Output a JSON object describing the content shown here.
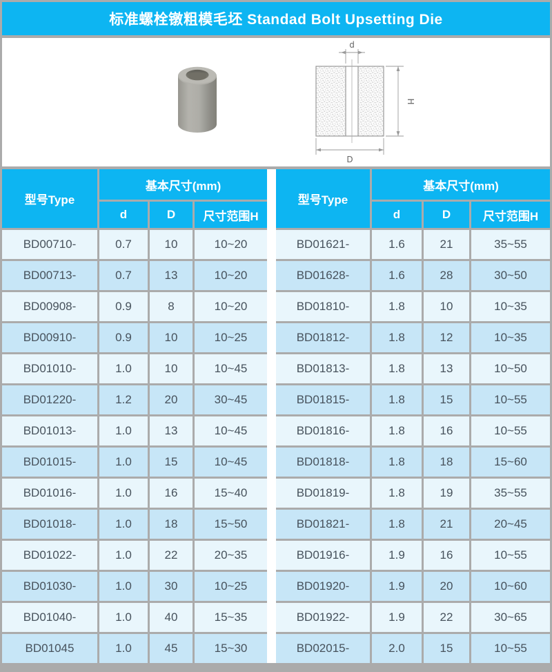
{
  "title": "标准螺栓镦粗模毛坯 Standad Bolt Upsetting Die",
  "figure": {
    "photo": "3d-render-of-cylindrical-upsetting-die",
    "diagram_labels": {
      "inner_dia": "d",
      "outer_dia": "D",
      "height": "H"
    }
  },
  "table_header": {
    "type_col": "型号Type",
    "group": "基本尺寸(mm)",
    "sub": [
      "d",
      "D",
      "尺寸范围H"
    ]
  },
  "tables": [
    {
      "rows": [
        [
          "BD00710-",
          "0.7",
          "10",
          "10~20"
        ],
        [
          "BD00713-",
          "0.7",
          "13",
          "10~20"
        ],
        [
          "BD00908-",
          "0.9",
          "8",
          "10~20"
        ],
        [
          "BD00910-",
          "0.9",
          "10",
          "10~25"
        ],
        [
          "BD01010-",
          "1.0",
          "10",
          "10~45"
        ],
        [
          "BD01220-",
          "1.2",
          "20",
          "30~45"
        ],
        [
          "BD01013-",
          "1.0",
          "13",
          "10~45"
        ],
        [
          "BD01015-",
          "1.0",
          "15",
          "10~45"
        ],
        [
          "BD01016-",
          "1.0",
          "16",
          "15~40"
        ],
        [
          "BD01018-",
          "1.0",
          "18",
          "15~50"
        ],
        [
          "BD01022-",
          "1.0",
          "22",
          "20~35"
        ],
        [
          "BD01030-",
          "1.0",
          "30",
          "10~25"
        ],
        [
          "BD01040-",
          "1.0",
          "40",
          "15~35"
        ],
        [
          "BD01045",
          "1.0",
          "45",
          "15~30"
        ]
      ]
    },
    {
      "rows": [
        [
          "BD01621-",
          "1.6",
          "21",
          "35~55"
        ],
        [
          "BD01628-",
          "1.6",
          "28",
          "30~50"
        ],
        [
          "BD01810-",
          "1.8",
          "10",
          "10~35"
        ],
        [
          "BD01812-",
          "1.8",
          "12",
          "10~35"
        ],
        [
          "BD01813-",
          "1.8",
          "13",
          "10~50"
        ],
        [
          "BD01815-",
          "1.8",
          "15",
          "10~55"
        ],
        [
          "BD01816-",
          "1.8",
          "16",
          "10~55"
        ],
        [
          "BD01818-",
          "1.8",
          "18",
          "15~60"
        ],
        [
          "BD01819-",
          "1.8",
          "19",
          "35~55"
        ],
        [
          "BD01821-",
          "1.8",
          "21",
          "20~45"
        ],
        [
          "BD01916-",
          "1.9",
          "16",
          "10~55"
        ],
        [
          "BD01920-",
          "1.9",
          "20",
          "10~60"
        ],
        [
          "BD01922-",
          "1.9",
          "22",
          "30~65"
        ],
        [
          "BD02015-",
          "2.0",
          "15",
          "10~55"
        ]
      ]
    }
  ],
  "colors": {
    "accent": "#0db5f2",
    "row_light": "#e9f6fc",
    "row_dark": "#c7e6f7",
    "frame_gray": "#ababab",
    "cell_text": "#47525c"
  }
}
